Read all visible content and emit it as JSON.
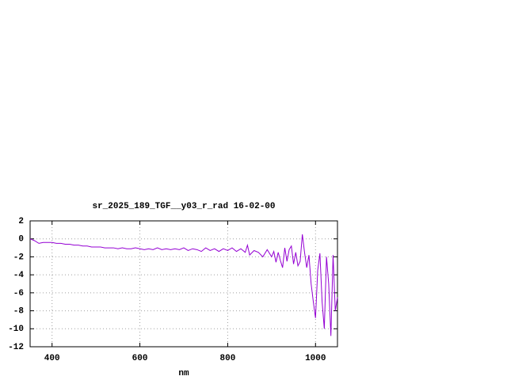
{
  "chart_data": {
    "type": "line",
    "title": "sr_2025_189_TGF__y03_r_rad 16-02-00",
    "x_label": "nm",
    "xlim": [
      350,
      1050
    ],
    "xticks": [
      400,
      600,
      800,
      1000
    ],
    "ylim": [
      -12,
      2
    ],
    "yticks": [
      -12,
      -10,
      -8,
      -6,
      -4,
      -2,
      0,
      2
    ],
    "grid": true,
    "x": [
      350,
      360,
      370,
      380,
      390,
      400,
      410,
      420,
      430,
      440,
      450,
      460,
      470,
      480,
      490,
      500,
      510,
      520,
      530,
      540,
      550,
      560,
      570,
      580,
      590,
      600,
      610,
      620,
      630,
      640,
      650,
      660,
      670,
      680,
      690,
      700,
      710,
      720,
      730,
      740,
      750,
      760,
      770,
      780,
      790,
      800,
      810,
      820,
      830,
      840,
      845,
      850,
      860,
      870,
      880,
      890,
      900,
      905,
      910,
      915,
      920,
      925,
      930,
      935,
      940,
      945,
      950,
      955,
      960,
      965,
      970,
      975,
      980,
      985,
      990,
      995,
      1000,
      1005,
      1010,
      1015,
      1020,
      1025,
      1030,
      1035,
      1040,
      1045,
      1050
    ],
    "series": [
      {
        "color": "#9400d3",
        "values": [
          0.0,
          -0.2,
          -0.5,
          -0.4,
          -0.4,
          -0.4,
          -0.5,
          -0.5,
          -0.6,
          -0.6,
          -0.7,
          -0.7,
          -0.8,
          -0.8,
          -0.9,
          -0.9,
          -0.9,
          -1.0,
          -1.0,
          -1.0,
          -1.1,
          -1.0,
          -1.1,
          -1.1,
          -1.0,
          -1.1,
          -1.2,
          -1.1,
          -1.2,
          -1.0,
          -1.2,
          -1.1,
          -1.2,
          -1.1,
          -1.2,
          -1.0,
          -1.3,
          -1.1,
          -1.2,
          -1.4,
          -1.0,
          -1.3,
          -1.1,
          -1.4,
          -1.1,
          -1.3,
          -1.0,
          -1.4,
          -1.1,
          -1.5,
          -0.7,
          -1.8,
          -1.3,
          -1.5,
          -2.0,
          -1.2,
          -2.0,
          -1.4,
          -2.6,
          -1.5,
          -2.4,
          -3.2,
          -1.0,
          -2.5,
          -1.2,
          -0.8,
          -2.8,
          -1.5,
          -3.0,
          -2.5,
          0.5,
          -1.5,
          -3.2,
          -1.8,
          -5.0,
          -7.0,
          -8.8,
          -3.5,
          -1.6,
          -7.0,
          -10.0,
          -2.0,
          -5.0,
          -10.8,
          -1.8,
          -8.0,
          -6.5
        ]
      }
    ]
  }
}
